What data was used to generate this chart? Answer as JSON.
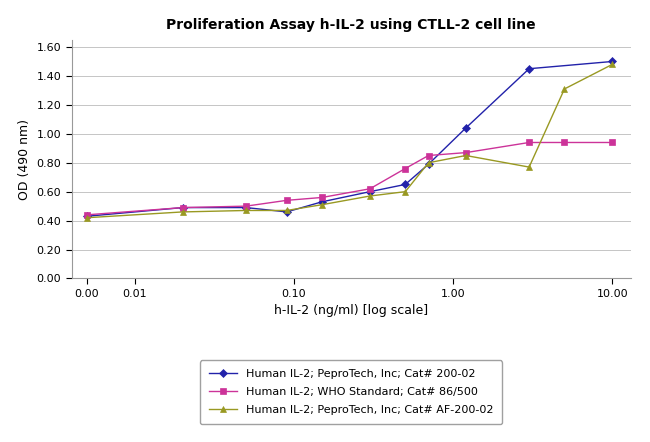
{
  "title": "Proliferation Assay h-IL-2 using CTLL-2 cell line",
  "xlabel": "h-IL-2 (ng/ml) [log scale]",
  "ylabel": "OD (490 nm)",
  "ylim": [
    0.0,
    1.65
  ],
  "yticks": [
    0.0,
    0.2,
    0.4,
    0.6,
    0.8,
    1.0,
    1.2,
    1.4,
    1.6
  ],
  "series": [
    {
      "label": "Human IL-2; PeproTech, Inc; Cat# 200-02",
      "color": "#2222aa",
      "marker": "D",
      "markersize": 4,
      "x": [
        0.005,
        0.02,
        0.05,
        0.09,
        0.15,
        0.3,
        0.5,
        0.7,
        1.2,
        3.0,
        10.0
      ],
      "y": [
        0.43,
        0.49,
        0.49,
        0.46,
        0.53,
        0.6,
        0.65,
        0.79,
        1.04,
        1.45,
        1.5
      ]
    },
    {
      "label": "Human IL-2; WHO Standard; Cat# 86/500",
      "color": "#cc3399",
      "marker": "s",
      "markersize": 4,
      "x": [
        0.005,
        0.02,
        0.05,
        0.09,
        0.15,
        0.3,
        0.5,
        0.7,
        1.2,
        3.0,
        5.0,
        10.0
      ],
      "y": [
        0.44,
        0.49,
        0.5,
        0.54,
        0.56,
        0.62,
        0.76,
        0.85,
        0.87,
        0.94,
        0.94,
        0.94
      ]
    },
    {
      "label": "Human IL-2; PeproTech, Inc; Cat# AF-200-02",
      "color": "#999922",
      "marker": "^",
      "markersize": 4,
      "x": [
        0.005,
        0.02,
        0.05,
        0.09,
        0.15,
        0.3,
        0.5,
        0.7,
        1.2,
        3.0,
        5.0,
        10.0
      ],
      "y": [
        0.42,
        0.46,
        0.47,
        0.47,
        0.51,
        0.57,
        0.6,
        0.8,
        0.85,
        0.77,
        1.31,
        1.48
      ]
    }
  ],
  "background_color": "#ffffff",
  "grid_color": "#bbbbbb",
  "title_fontsize": 10,
  "label_fontsize": 9,
  "tick_fontsize": 8,
  "legend_fontsize": 8,
  "xlim": [
    0.004,
    13.0
  ],
  "xtick_positions": [
    0.005,
    0.01,
    0.1,
    1.0,
    10.0
  ],
  "xtick_labels": [
    "0.00",
    "0.01",
    "0.10",
    "1.00",
    "10.00"
  ]
}
